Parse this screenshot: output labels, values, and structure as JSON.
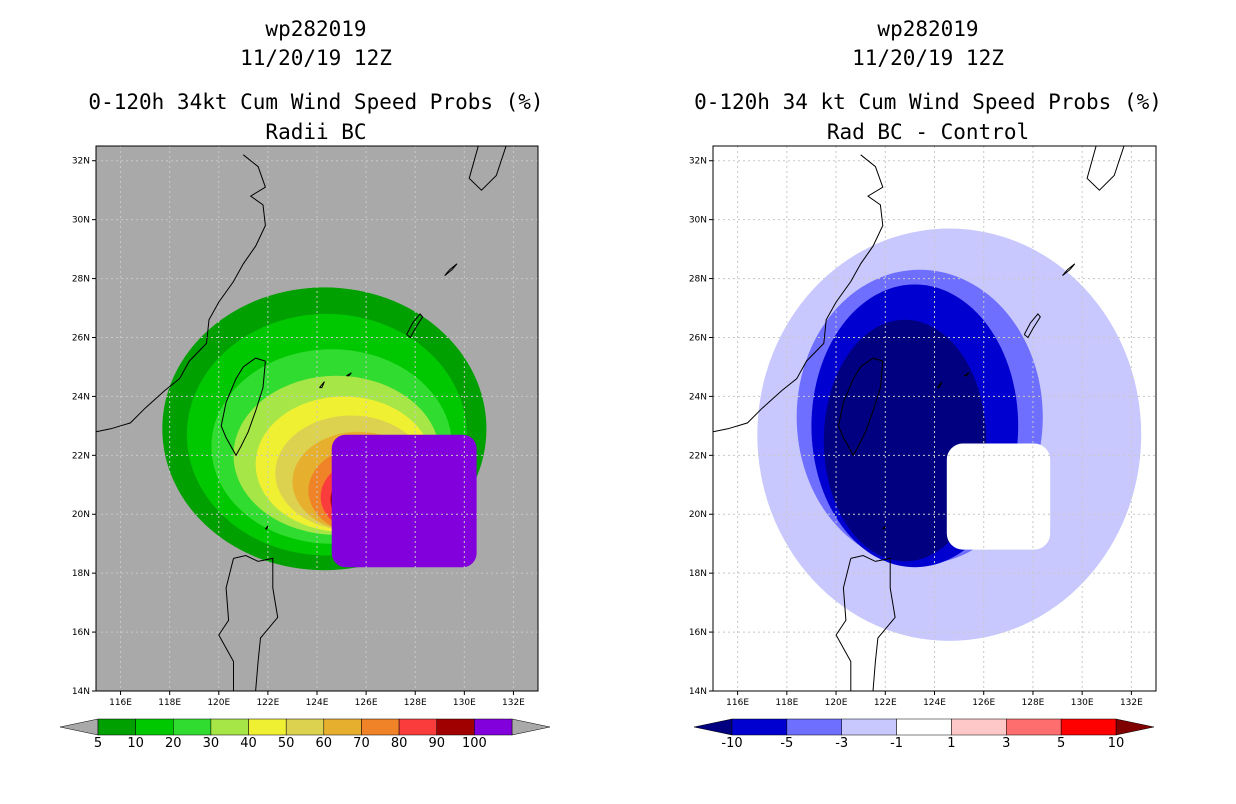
{
  "chart_data": [
    {
      "type": "heatmap",
      "storm_id": "wp282019",
      "datetime": "11/20/19 12Z",
      "title": "0-120h 34kt Cum Wind Speed Probs (%)",
      "subtitle": "Radii BC",
      "units": "%",
      "background": "#a9a9a9",
      "xlim": [
        115,
        133
      ],
      "ylim": [
        14,
        32.5
      ],
      "x_ticks": [
        116,
        118,
        120,
        122,
        124,
        126,
        128,
        130,
        132
      ],
      "x_tick_labels": [
        "116E",
        "118E",
        "120E",
        "122E",
        "124E",
        "126E",
        "128E",
        "130E",
        "132E"
      ],
      "y_ticks": [
        14,
        16,
        18,
        20,
        22,
        24,
        26,
        28,
        30,
        32
      ],
      "y_tick_labels": [
        "14N",
        "16N",
        "18N",
        "20N",
        "22N",
        "24N",
        "26N",
        "28N",
        "30N",
        "32N"
      ],
      "grid": true,
      "colorbar": {
        "boundaries": [
          "5",
          "10",
          "20",
          "30",
          "40",
          "50",
          "60",
          "70",
          "80",
          "90",
          "100"
        ],
        "colors": [
          "#00a000",
          "#00c800",
          "#30dc30",
          "#a6e646",
          "#f0f032",
          "#dcd250",
          "#e6af2d",
          "#f08228",
          "#fa3c3c",
          "#a00000",
          "#8200dc"
        ],
        "extend_colors": [
          "#a9a9a9",
          "#a9a9a9"
        ]
      },
      "contour_levels": [
        {
          "level": 5,
          "center": [
            124.3,
            22.9
          ],
          "rx": 6.6,
          "ry": 4.8,
          "color": "#00a000"
        },
        {
          "level": 10,
          "center": [
            124.4,
            22.7
          ],
          "rx": 5.7,
          "ry": 4.1,
          "color": "#00c800"
        },
        {
          "level": 20,
          "center": [
            124.6,
            22.3
          ],
          "rx": 4.9,
          "ry": 3.3,
          "color": "#30dc30"
        },
        {
          "level": 30,
          "center": [
            124.8,
            22.0
          ],
          "rx": 4.2,
          "ry": 2.7,
          "color": "#a6e646"
        },
        {
          "level": 40,
          "center": [
            125.1,
            21.7
          ],
          "rx": 3.6,
          "ry": 2.3,
          "color": "#f0f032"
        },
        {
          "level": 50,
          "center": [
            125.4,
            21.4
          ],
          "rx": 3.1,
          "ry": 1.95,
          "color": "#dcd250"
        },
        {
          "level": 60,
          "center": [
            125.7,
            21.1
          ],
          "rx": 2.7,
          "ry": 1.7,
          "color": "#e6af2d"
        },
        {
          "level": 70,
          "center": [
            126.0,
            20.8
          ],
          "rx": 2.35,
          "ry": 1.5,
          "color": "#f08228"
        },
        {
          "level": 80,
          "center": [
            126.2,
            20.6
          ],
          "rx": 2.05,
          "ry": 1.3,
          "color": "#fa3c3c"
        },
        {
          "level": 90,
          "center": [
            126.3,
            20.5
          ],
          "rx": 1.75,
          "ry": 1.1,
          "color": "#a00000"
        }
      ],
      "core_100": {
        "min_lon": 124.6,
        "max_lon": 130.5,
        "min_lat": 18.2,
        "max_lat": 22.7,
        "color": "#8200dc"
      }
    },
    {
      "type": "heatmap",
      "storm_id": "wp282019",
      "datetime": "11/20/19 12Z",
      "title": "0-120h 34 kt Cum Wind Speed Probs (%)",
      "subtitle": "Rad BC - Control",
      "units": "%",
      "background": "#ffffff",
      "xlim": [
        115,
        133
      ],
      "ylim": [
        14,
        32.5
      ],
      "x_ticks": [
        116,
        118,
        120,
        122,
        124,
        126,
        128,
        130,
        132
      ],
      "x_tick_labels": [
        "116E",
        "118E",
        "120E",
        "122E",
        "124E",
        "126E",
        "128E",
        "130E",
        "132E"
      ],
      "y_ticks": [
        14,
        16,
        18,
        20,
        22,
        24,
        26,
        28,
        30,
        32
      ],
      "y_tick_labels": [
        "14N",
        "16N",
        "18N",
        "20N",
        "22N",
        "24N",
        "26N",
        "28N",
        "30N",
        "32N"
      ],
      "grid": true,
      "colorbar": {
        "boundaries": [
          "-10",
          "-5",
          "-3",
          "-1",
          "1",
          "3",
          "5",
          "10"
        ],
        "colors": [
          "#0000d0",
          "#6e6eff",
          "#c8c8ff",
          "#ffffff",
          "#ffc8c8",
          "#ff6e6e",
          "#ff0000"
        ],
        "extend_colors": [
          "#000080",
          "#800000"
        ]
      },
      "contour_levels": [
        {
          "level": "-1",
          "center": [
            124.6,
            22.7
          ],
          "rx": 7.8,
          "ry": 7.0,
          "color": "#c8c8ff"
        },
        {
          "level": "-3",
          "center": [
            123.4,
            23.3
          ],
          "rx": 5.0,
          "ry": 5.0,
          "color": "#6e6eff"
        },
        {
          "level": "-5",
          "center": [
            123.2,
            23.0
          ],
          "rx": 4.2,
          "ry": 4.8,
          "color": "#0000d0"
        },
        {
          "level": "-10",
          "center": [
            122.8,
            22.5
          ],
          "rx": 3.3,
          "ry": 4.1,
          "color": "#000080"
        }
      ],
      "difference_zero_area": {
        "min_lon": 124.5,
        "max_lon": 128.7,
        "min_lat": 18.8,
        "max_lat": 22.4,
        "color": "#ffffff"
      }
    }
  ],
  "colorbar_colors": {
    "left": [
      "#a9a9a9",
      "#a9a9a9"
    ],
    "right": [
      "#000080",
      "#800000"
    ]
  }
}
